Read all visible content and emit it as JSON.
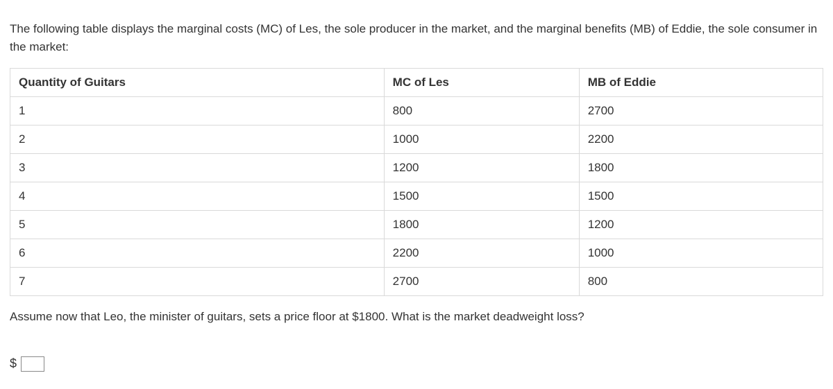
{
  "intro_text": "The following table displays the marginal costs (MC) of Les, the sole producer in the market, and the marginal benefits (MB) of Eddie, the sole consumer in the market:",
  "table": {
    "columns": [
      "Quantity of Guitars",
      "MC of Les",
      "MB of Eddie"
    ],
    "rows": [
      [
        "1",
        "800",
        "2700"
      ],
      [
        "2",
        "1000",
        "2200"
      ],
      [
        "3",
        "1200",
        "1800"
      ],
      [
        "4",
        "1500",
        "1500"
      ],
      [
        "5",
        "1800",
        "1200"
      ],
      [
        "6",
        "2200",
        "1000"
      ],
      [
        "7",
        "2700",
        "800"
      ]
    ],
    "column_widths_pct": [
      46,
      24,
      30
    ],
    "border_color": "#d9d9d9",
    "header_fontweight": 700,
    "cell_fontsize": 17,
    "text_color": "#333333",
    "background_color": "#ffffff"
  },
  "question_text": "Assume now that Leo, the minister of guitars, sets a price floor at $1800. What is the market deadweight loss?",
  "answer": {
    "currency_symbol": "$",
    "value": ""
  }
}
